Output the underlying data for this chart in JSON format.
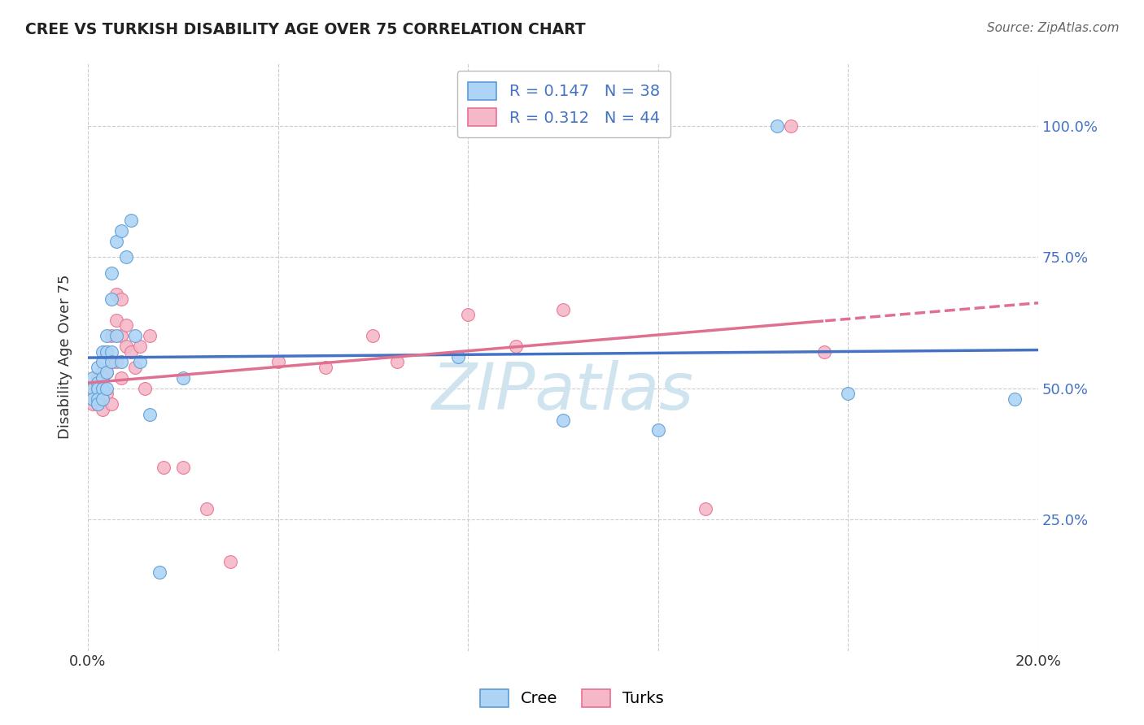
{
  "title": "CREE VS TURKISH DISABILITY AGE OVER 75 CORRELATION CHART",
  "source": "Source: ZipAtlas.com",
  "ylabel": "Disability Age Over 75",
  "cree_R": 0.147,
  "cree_N": 38,
  "turks_R": 0.312,
  "turks_N": 44,
  "cree_color": "#add4f5",
  "turks_color": "#f5b8c8",
  "cree_edge_color": "#5b9bd5",
  "turks_edge_color": "#e87090",
  "cree_line_color": "#4472c4",
  "turks_line_color": "#e07090",
  "watermark_text": "ZIPatlas",
  "watermark_color": "#d0e4f0",
  "background_color": "#ffffff",
  "legend_text_color": "#4472c4",
  "xlim": [
    0.0,
    0.2
  ],
  "ylim": [
    0.0,
    1.12
  ],
  "ytick_positions": [
    0.25,
    0.5,
    0.75,
    1.0
  ],
  "ytick_labels": [
    "25.0%",
    "50.0%",
    "75.0%",
    "100.0%"
  ],
  "xtick_positions": [
    0.0,
    0.04,
    0.08,
    0.12,
    0.16,
    0.2
  ],
  "xtick_labels": [
    "0.0%",
    "",
    "",
    "",
    "",
    "20.0%"
  ],
  "cree_x": [
    0.001,
    0.001,
    0.001,
    0.002,
    0.002,
    0.002,
    0.002,
    0.002,
    0.003,
    0.003,
    0.003,
    0.003,
    0.003,
    0.004,
    0.004,
    0.004,
    0.004,
    0.005,
    0.005,
    0.005,
    0.005,
    0.006,
    0.006,
    0.007,
    0.007,
    0.008,
    0.009,
    0.01,
    0.011,
    0.013,
    0.015,
    0.02,
    0.078,
    0.1,
    0.12,
    0.145,
    0.16,
    0.195
  ],
  "cree_y": [
    0.52,
    0.5,
    0.48,
    0.54,
    0.51,
    0.5,
    0.48,
    0.47,
    0.57,
    0.55,
    0.52,
    0.5,
    0.48,
    0.6,
    0.57,
    0.53,
    0.5,
    0.72,
    0.67,
    0.57,
    0.55,
    0.78,
    0.6,
    0.8,
    0.55,
    0.75,
    0.82,
    0.6,
    0.55,
    0.45,
    0.15,
    0.52,
    0.56,
    0.44,
    0.42,
    1.0,
    0.49,
    0.48
  ],
  "turks_x": [
    0.001,
    0.001,
    0.001,
    0.002,
    0.002,
    0.002,
    0.002,
    0.003,
    0.003,
    0.003,
    0.003,
    0.004,
    0.004,
    0.004,
    0.005,
    0.005,
    0.005,
    0.006,
    0.006,
    0.006,
    0.007,
    0.007,
    0.007,
    0.008,
    0.008,
    0.009,
    0.01,
    0.011,
    0.012,
    0.013,
    0.016,
    0.02,
    0.025,
    0.03,
    0.04,
    0.05,
    0.06,
    0.065,
    0.08,
    0.09,
    0.1,
    0.13,
    0.148,
    0.155
  ],
  "turks_y": [
    0.5,
    0.49,
    0.47,
    0.52,
    0.5,
    0.49,
    0.47,
    0.53,
    0.5,
    0.48,
    0.46,
    0.57,
    0.53,
    0.49,
    0.6,
    0.55,
    0.47,
    0.68,
    0.63,
    0.55,
    0.67,
    0.6,
    0.52,
    0.62,
    0.58,
    0.57,
    0.54,
    0.58,
    0.5,
    0.6,
    0.35,
    0.35,
    0.27,
    0.17,
    0.55,
    0.54,
    0.6,
    0.55,
    0.64,
    0.58,
    0.65,
    0.27,
    1.0,
    0.57
  ]
}
